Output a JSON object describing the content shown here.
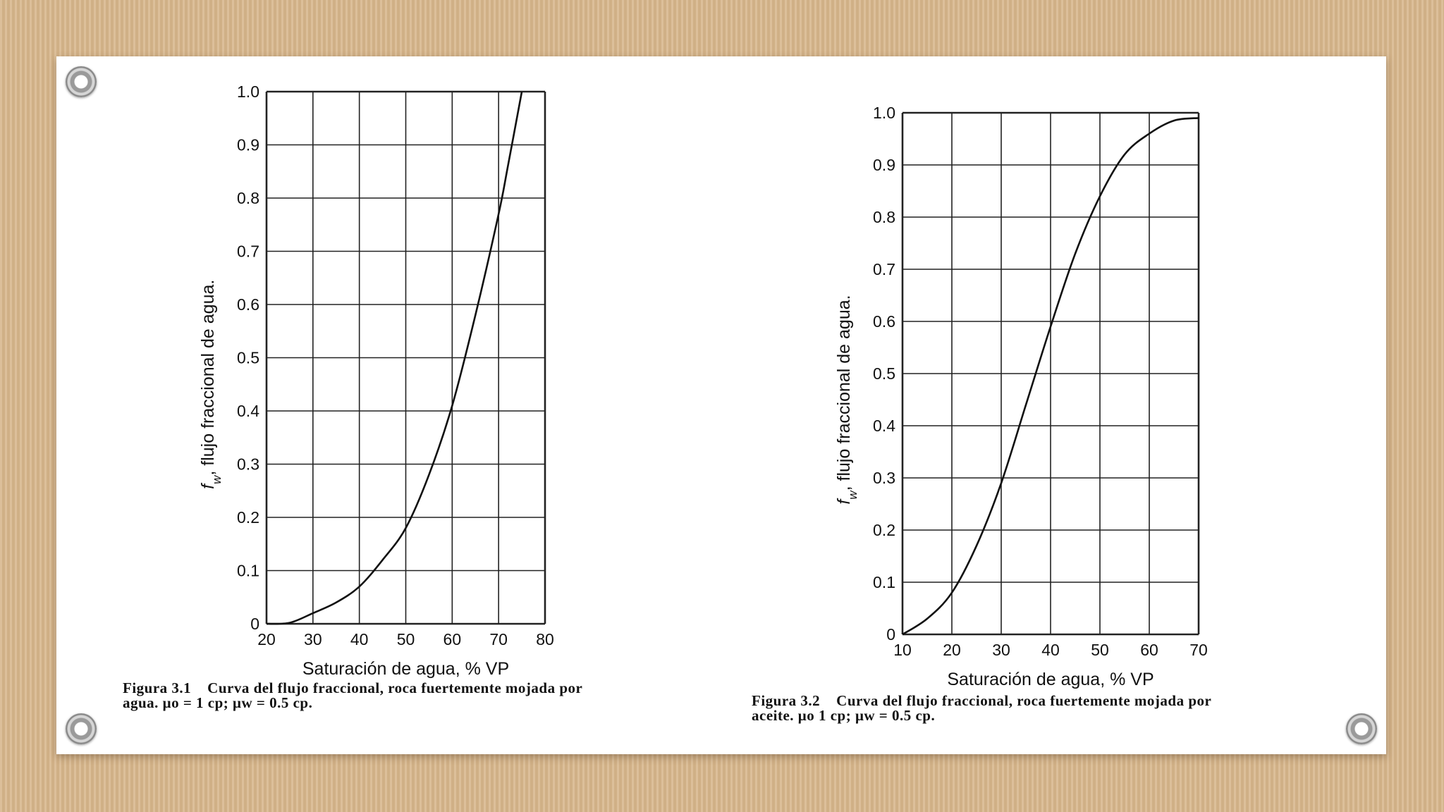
{
  "chart_data": [
    {
      "type": "line",
      "title": "",
      "xlabel": "Saturación de agua, % VP",
      "ylabel": "f_w, flujo fraccional de agua.",
      "ylabel_parts": {
        "symbol": "f",
        "subscript": "w",
        "rest": ", flujo fraccional de agua."
      },
      "xlim": [
        20,
        80
      ],
      "ylim": [
        0,
        1.0
      ],
      "xticks": [
        "20",
        "30",
        "40",
        "50",
        "60",
        "70",
        "80"
      ],
      "yticks": [
        "0",
        "0.1",
        "0.2",
        "0.3",
        "0.4",
        "0.5",
        "0.6",
        "0.7",
        "0.8",
        "0.9",
        "1.0"
      ],
      "grid": true,
      "series": [
        {
          "values": [
            [
              20,
              0
            ],
            [
              25,
              0.002
            ],
            [
              30,
              0.02
            ],
            [
              35,
              0.04
            ],
            [
              40,
              0.07
            ],
            [
              45,
              0.12
            ],
            [
              50,
              0.18
            ],
            [
              55,
              0.28
            ],
            [
              60,
              0.41
            ],
            [
              65,
              0.58
            ],
            [
              70,
              0.77
            ],
            [
              72,
              0.86
            ],
            [
              75,
              1.0
            ]
          ]
        }
      ],
      "caption": {
        "figure": "Figura 3.1",
        "text": "Curva del flujo fraccional, roca fuertemente mojada por",
        "line2": "agua. μo = 1 cp; μw = 0.5 cp."
      }
    },
    {
      "type": "line",
      "title": "",
      "xlabel": "Saturación de agua, % VP",
      "ylabel": "f_w, flujo fraccional de agua.",
      "ylabel_parts": {
        "symbol": "f",
        "subscript": "w",
        "rest": ", flujo fraccional de agua."
      },
      "xlim": [
        10,
        70
      ],
      "ylim": [
        0,
        1.0
      ],
      "xticks": [
        "10",
        "20",
        "30",
        "40",
        "50",
        "60",
        "70"
      ],
      "yticks": [
        "0",
        "0.1",
        "0.2",
        "0.3",
        "0.4",
        "0.5",
        "0.6",
        "0.7",
        "0.8",
        "0.9",
        "1.0"
      ],
      "grid": true,
      "series": [
        {
          "values": [
            [
              10,
              0
            ],
            [
              15,
              0.03
            ],
            [
              20,
              0.08
            ],
            [
              25,
              0.17
            ],
            [
              30,
              0.29
            ],
            [
              35,
              0.44
            ],
            [
              40,
              0.59
            ],
            [
              45,
              0.73
            ],
            [
              50,
              0.84
            ],
            [
              55,
              0.92
            ],
            [
              60,
              0.96
            ],
            [
              65,
              0.985
            ],
            [
              70,
              0.99
            ]
          ]
        }
      ],
      "caption": {
        "figure": "Figura 3.2",
        "text": "Curva del flujo fraccional, roca fuertemente mojada por",
        "line2": "aceite. μo 1 cp; μw = 0.5 cp."
      }
    }
  ]
}
